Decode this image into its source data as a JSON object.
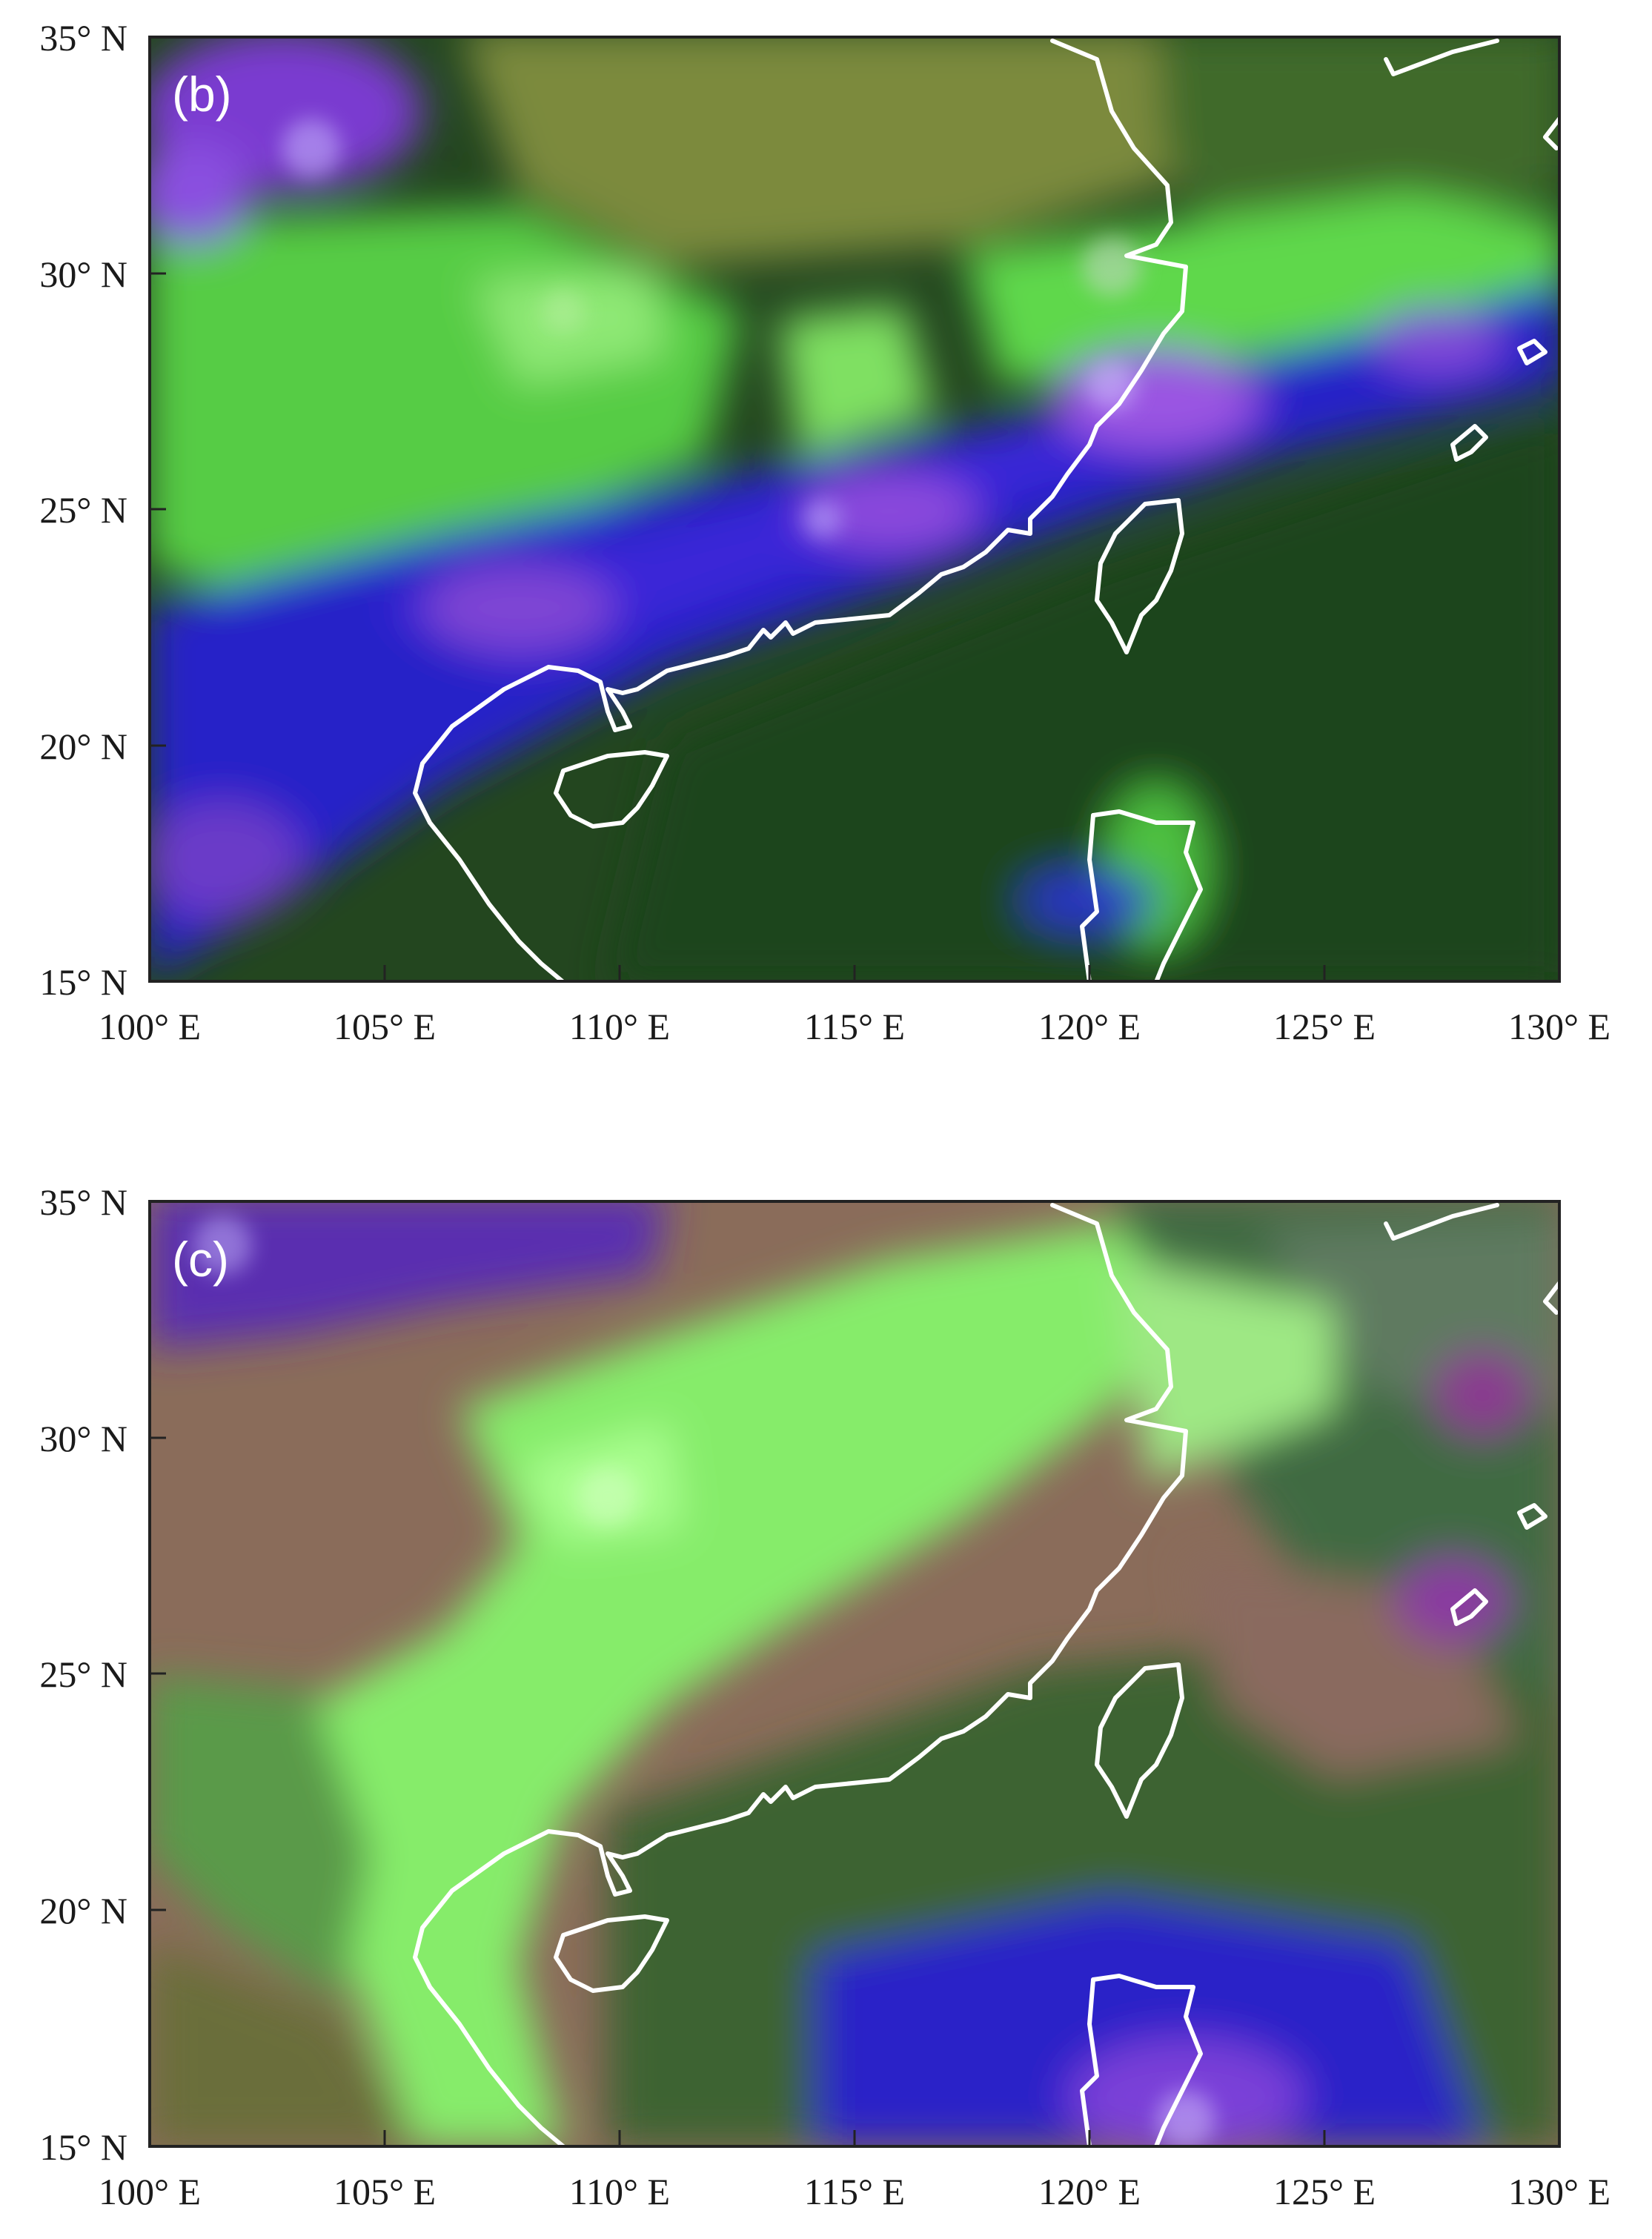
{
  "figure": {
    "x_ticks": [
      "100° E",
      "105° E",
      "110° E",
      "115° E",
      "120° E",
      "125° E",
      "130° E"
    ],
    "y_ticks": [
      "35° N",
      "30° N",
      "25° N",
      "20° N",
      "15° N"
    ],
    "lon_range": [
      100,
      130
    ],
    "lat_range": [
      15,
      35
    ]
  },
  "panels": [
    {
      "label": "(b)",
      "background": "#2a4a22",
      "coastline_color": "#ffffff",
      "regions": [
        {
          "kind": "land-haze",
          "color": "#7a8a38"
        },
        {
          "kind": "thin-cloud",
          "color": "#66e84e"
        },
        {
          "kind": "deep-cloud",
          "color": "#2a20d8"
        },
        {
          "kind": "cold-cloud-top",
          "color": "#a050e0"
        },
        {
          "kind": "ocean",
          "color": "#1f4a1e"
        }
      ]
    },
    {
      "label": "(c)",
      "background": "#8a6a58",
      "coastline_color": "#ffffff",
      "regions": [
        {
          "kind": "land",
          "color": "#8c6e5c"
        },
        {
          "kind": "low-cloud",
          "color": "#8af070"
        },
        {
          "kind": "ocean-haze",
          "color": "#3a5c32"
        },
        {
          "kind": "deep-cloud",
          "color": "#2a22c8"
        },
        {
          "kind": "cold-cloud-top",
          "color": "#8a40d8"
        }
      ]
    }
  ]
}
